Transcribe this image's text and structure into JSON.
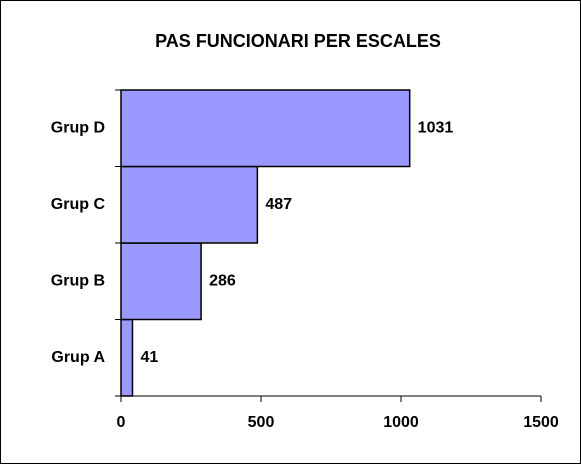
{
  "chart_data": {
    "type": "hbar",
    "title": "PAS FUNCIONARI PER ESCALES",
    "categories": [
      "Grup A",
      "Grup B",
      "Grup C",
      "Grup D"
    ],
    "values": [
      41,
      286,
      487,
      1031
    ],
    "color": "#9999ff",
    "xlim": [
      0,
      1500
    ],
    "xticks": [
      0,
      500,
      1000,
      1500
    ],
    "grid": false
  }
}
